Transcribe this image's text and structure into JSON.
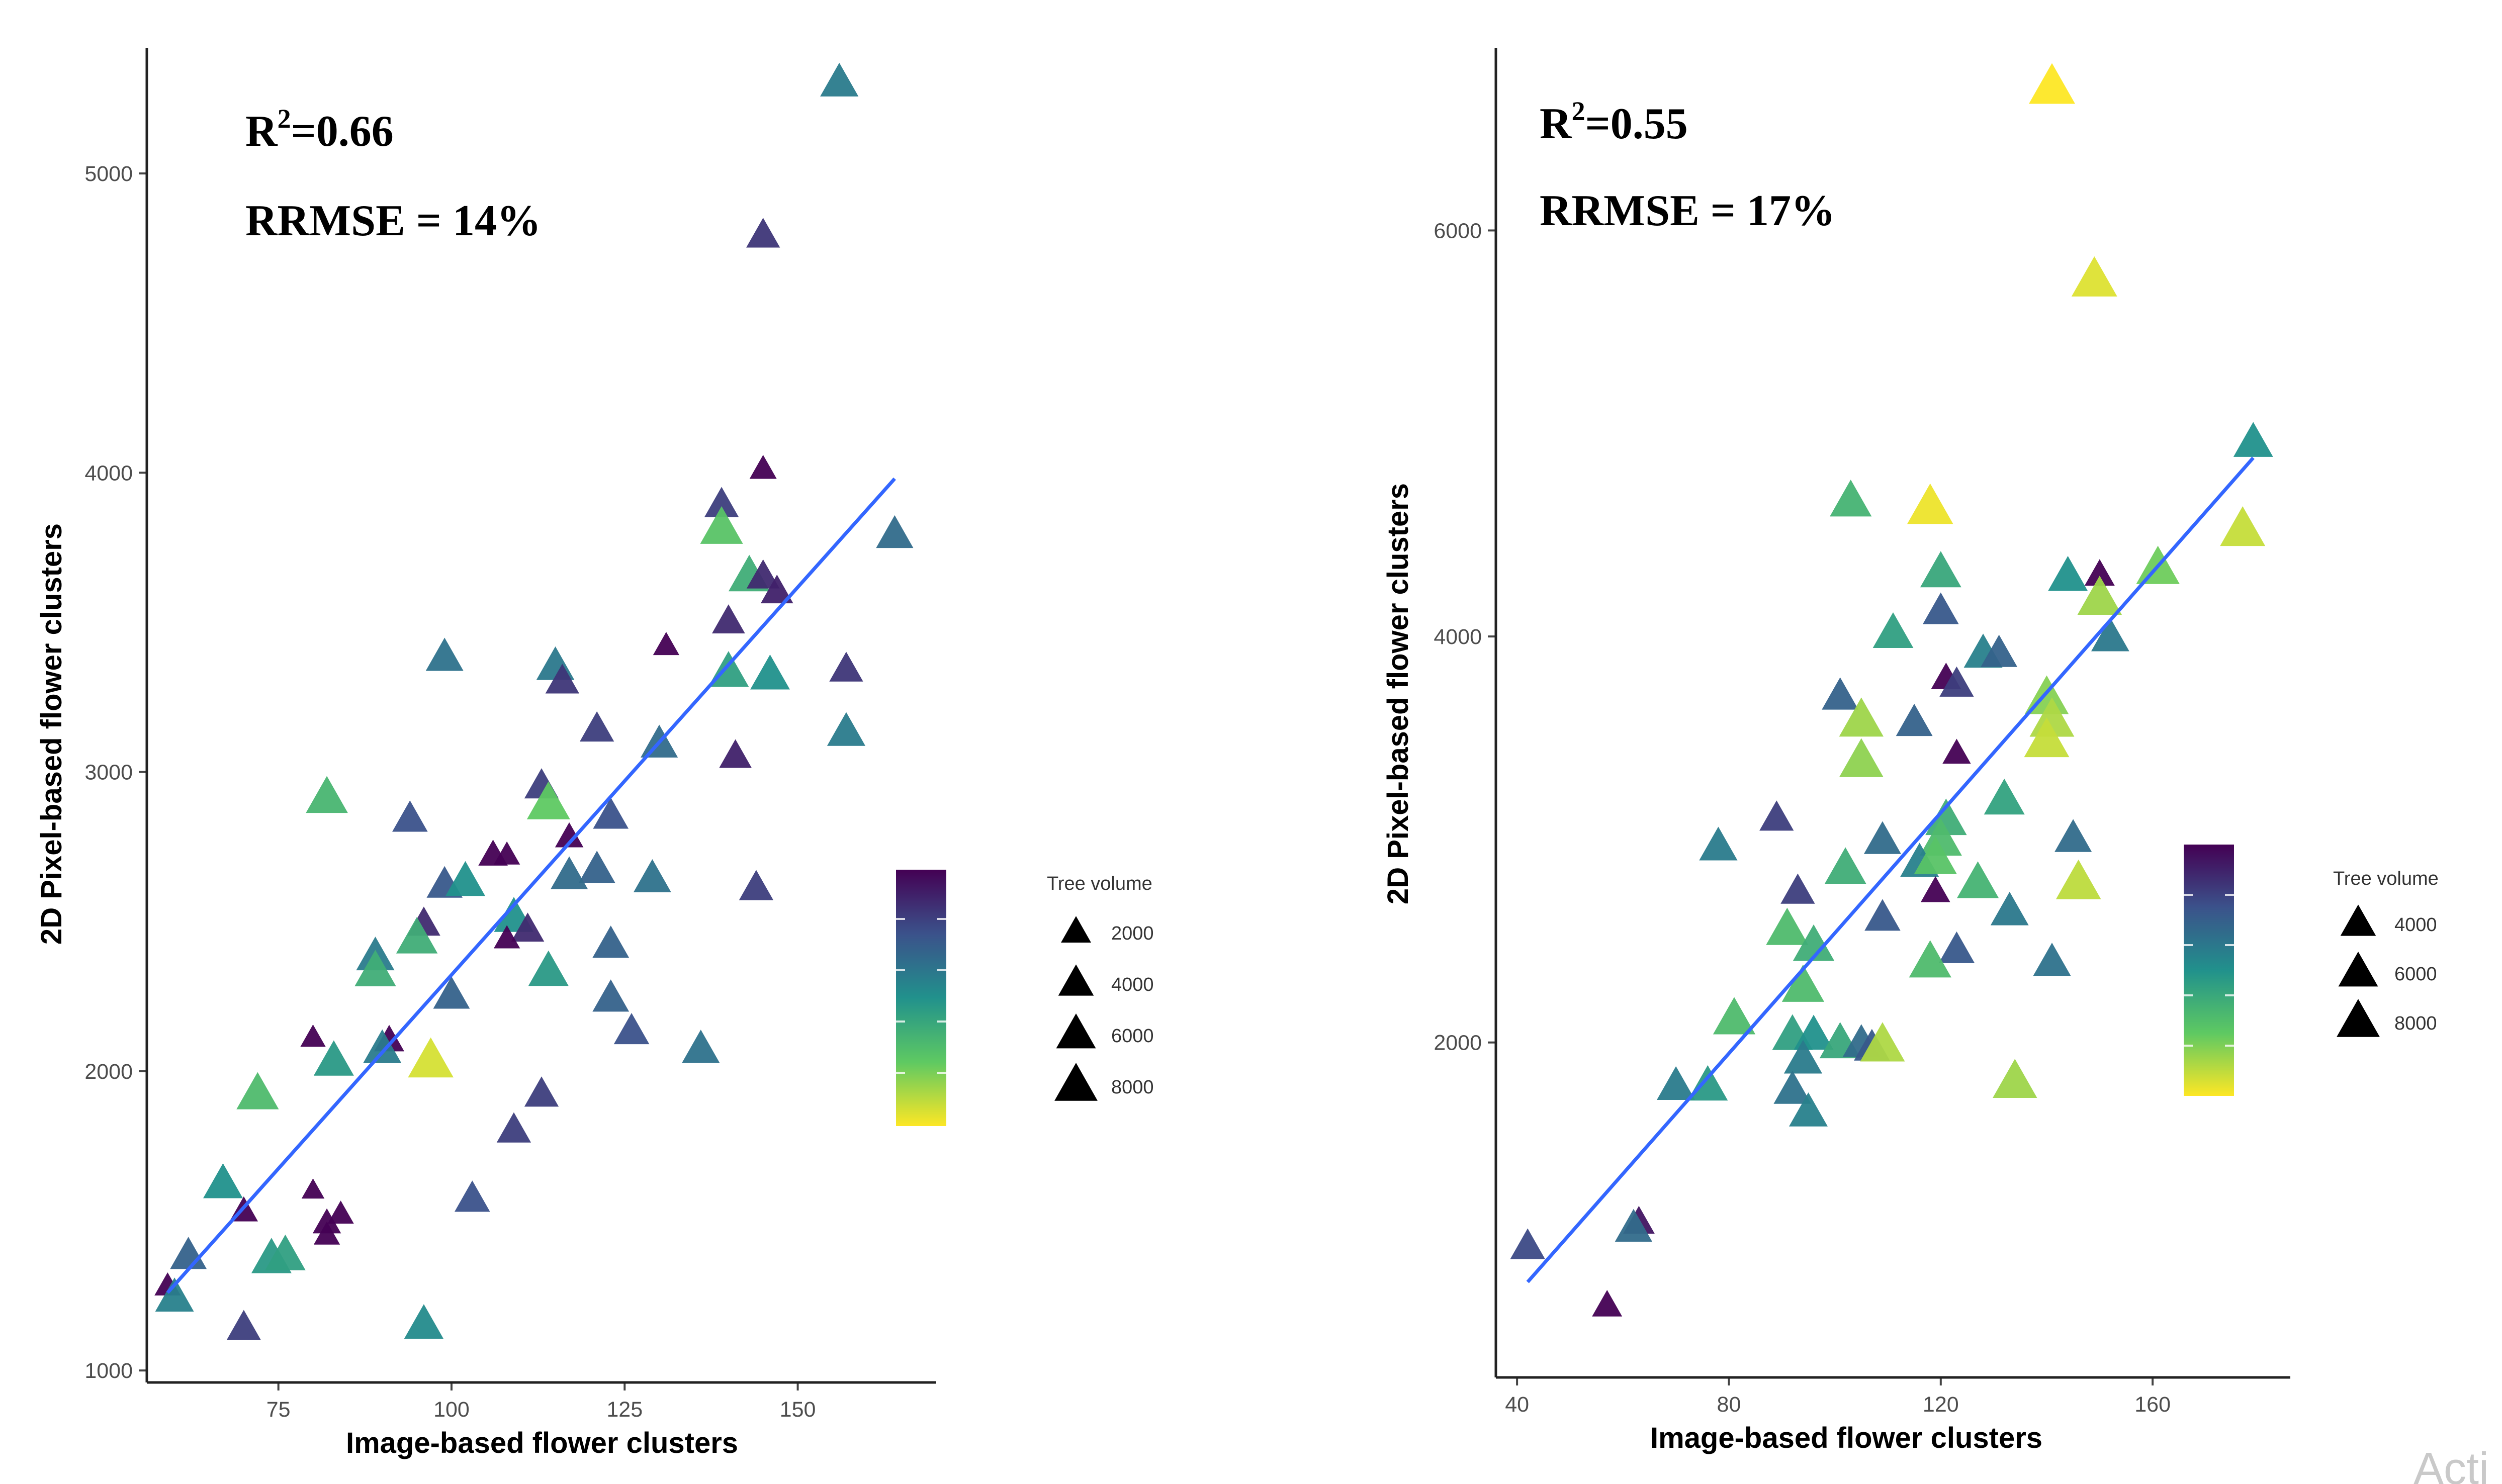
{
  "watermark": "Acti",
  "legend": {
    "title": "Tree volume"
  },
  "chart_data": [
    {
      "type": "scatter",
      "xlabel": "Image-based flower clusters",
      "ylabel": "2D Pixel-based flower clusters",
      "xlim": [
        56,
        170
      ],
      "ylim": [
        960,
        5420
      ],
      "xticks": [
        75,
        100,
        125,
        150
      ],
      "yticks": [
        1000,
        2000,
        3000,
        4000,
        5000
      ],
      "stats": {
        "r2_prefix": "R",
        "r2_sup": "2",
        "r2_value": "=0.66",
        "rrmse": "RRMSE = 14%"
      },
      "fit_line": {
        "x": [
          59,
          164
        ],
        "y": [
          1260,
          3980
        ]
      },
      "color_scale": {
        "min": 2000,
        "max": 10000
      },
      "size_legend": [
        2000,
        4000,
        6000,
        8000
      ],
      "points": [
        {
          "x": 156,
          "y": 5300,
          "v": 5300
        },
        {
          "x": 145,
          "y": 4790,
          "v": 3300
        },
        {
          "x": 145,
          "y": 4010,
          "v": 1200
        },
        {
          "x": 139,
          "y": 3890,
          "v": 3500
        },
        {
          "x": 139,
          "y": 3810,
          "v": 7800
        },
        {
          "x": 143,
          "y": 3650,
          "v": 7000
        },
        {
          "x": 145,
          "y": 3650,
          "v": 3000
        },
        {
          "x": 147,
          "y": 3600,
          "v": 2800
        },
        {
          "x": 164,
          "y": 3790,
          "v": 4800
        },
        {
          "x": 140,
          "y": 3500,
          "v": 3000
        },
        {
          "x": 131,
          "y": 3420,
          "v": 1000
        },
        {
          "x": 99,
          "y": 3380,
          "v": 5000
        },
        {
          "x": 115,
          "y": 3350,
          "v": 5200
        },
        {
          "x": 116,
          "y": 3300,
          "v": 3300
        },
        {
          "x": 140,
          "y": 3330,
          "v": 6500
        },
        {
          "x": 146,
          "y": 3320,
          "v": 6000
        },
        {
          "x": 157,
          "y": 3340,
          "v": 3300
        },
        {
          "x": 157,
          "y": 3130,
          "v": 5300
        },
        {
          "x": 121,
          "y": 3140,
          "v": 3500
        },
        {
          "x": 130,
          "y": 3090,
          "v": 4800
        },
        {
          "x": 141,
          "y": 3050,
          "v": 2800
        },
        {
          "x": 113,
          "y": 2950,
          "v": 3500
        },
        {
          "x": 114,
          "y": 2890,
          "v": 8000
        },
        {
          "x": 82,
          "y": 2910,
          "v": 7300
        },
        {
          "x": 94,
          "y": 2840,
          "v": 4000
        },
        {
          "x": 123,
          "y": 2850,
          "v": 4000
        },
        {
          "x": 117,
          "y": 2780,
          "v": 1500
        },
        {
          "x": 106,
          "y": 2720,
          "v": 1800
        },
        {
          "x": 108,
          "y": 2720,
          "v": 1000
        },
        {
          "x": 121,
          "y": 2670,
          "v": 4500
        },
        {
          "x": 117,
          "y": 2650,
          "v": 4800
        },
        {
          "x": 99,
          "y": 2620,
          "v": 4200
        },
        {
          "x": 102,
          "y": 2630,
          "v": 6000
        },
        {
          "x": 129,
          "y": 2640,
          "v": 5000
        },
        {
          "x": 144,
          "y": 2610,
          "v": 3500
        },
        {
          "x": 109,
          "y": 2510,
          "v": 6000
        },
        {
          "x": 111,
          "y": 2470,
          "v": 3000
        },
        {
          "x": 108,
          "y": 2440,
          "v": 1000
        },
        {
          "x": 96,
          "y": 2490,
          "v": 3000
        },
        {
          "x": 95,
          "y": 2440,
          "v": 7000
        },
        {
          "x": 123,
          "y": 2420,
          "v": 4500
        },
        {
          "x": 89,
          "y": 2380,
          "v": 5300
        },
        {
          "x": 89,
          "y": 2330,
          "v": 7000
        },
        {
          "x": 114,
          "y": 2330,
          "v": 6300
        },
        {
          "x": 100,
          "y": 2250,
          "v": 4500
        },
        {
          "x": 123,
          "y": 2240,
          "v": 4500
        },
        {
          "x": 126,
          "y": 2130,
          "v": 4000
        },
        {
          "x": 80,
          "y": 2110,
          "v": 800
        },
        {
          "x": 91,
          "y": 2100,
          "v": 2000
        },
        {
          "x": 90,
          "y": 2070,
          "v": 5300
        },
        {
          "x": 136,
          "y": 2070,
          "v": 5000
        },
        {
          "x": 83,
          "y": 2030,
          "v": 6300
        },
        {
          "x": 97,
          "y": 2030,
          "v": 9500
        },
        {
          "x": 72,
          "y": 1920,
          "v": 7500
        },
        {
          "x": 113,
          "y": 1920,
          "v": 3500
        },
        {
          "x": 109,
          "y": 1800,
          "v": 3500
        },
        {
          "x": 67,
          "y": 1620,
          "v": 6000
        },
        {
          "x": 103,
          "y": 1570,
          "v": 4000
        },
        {
          "x": 80,
          "y": 1600,
          "v": 400
        },
        {
          "x": 70,
          "y": 1530,
          "v": 1500
        },
        {
          "x": 84,
          "y": 1520,
          "v": 1000
        },
        {
          "x": 82,
          "y": 1490,
          "v": 1500
        },
        {
          "x": 82,
          "y": 1450,
          "v": 1000
        },
        {
          "x": 62,
          "y": 1380,
          "v": 4500
        },
        {
          "x": 74,
          "y": 1370,
          "v": 6300
        },
        {
          "x": 76,
          "y": 1380,
          "v": 6500
        },
        {
          "x": 59,
          "y": 1280,
          "v": 1000
        },
        {
          "x": 60,
          "y": 1240,
          "v": 5500
        },
        {
          "x": 70,
          "y": 1140,
          "v": 3500
        },
        {
          "x": 96,
          "y": 1150,
          "v": 5800
        }
      ]
    },
    {
      "type": "scatter",
      "xlabel": "Image-based flower clusters",
      "ylabel": "2D Pixel-based flower clusters",
      "xlim": [
        36,
        186
      ],
      "ylim": [
        350,
        6900
      ],
      "xticks": [
        40,
        80,
        120,
        160
      ],
      "yticks": [
        2000,
        4000,
        6000
      ],
      "stats": {
        "r2_prefix": "R",
        "r2_sup": "2",
        "r2_value": "=0.55",
        "rrmse": "RRMSE = 17%"
      },
      "fit_line": {
        "x": [
          42,
          179
        ],
        "y": [
          820,
          4880
        ]
      },
      "color_scale": {
        "min": 2000,
        "max": 10000
      },
      "size_legend": [
        4000,
        6000,
        8000
      ],
      "points": [
        {
          "x": 141,
          "y": 6700,
          "v": 10000
        },
        {
          "x": 149,
          "y": 5750,
          "v": 9600
        },
        {
          "x": 179,
          "y": 4950,
          "v": 6000
        },
        {
          "x": 177,
          "y": 4520,
          "v": 9300
        },
        {
          "x": 103,
          "y": 4660,
          "v": 7200
        },
        {
          "x": 118,
          "y": 4630,
          "v": 9800
        },
        {
          "x": 120,
          "y": 4310,
          "v": 6800
        },
        {
          "x": 144,
          "y": 4290,
          "v": 6000
        },
        {
          "x": 150,
          "y": 4300,
          "v": 2000
        },
        {
          "x": 161,
          "y": 4330,
          "v": 8200
        },
        {
          "x": 150,
          "y": 4180,
          "v": 8800
        },
        {
          "x": 120,
          "y": 4120,
          "v": 4200
        },
        {
          "x": 111,
          "y": 4010,
          "v": 6500
        },
        {
          "x": 152,
          "y": 3990,
          "v": 5200
        },
        {
          "x": 128,
          "y": 3910,
          "v": 5500
        },
        {
          "x": 131,
          "y": 3910,
          "v": 4500
        },
        {
          "x": 121,
          "y": 3790,
          "v": 2000
        },
        {
          "x": 123,
          "y": 3760,
          "v": 3500
        },
        {
          "x": 101,
          "y": 3700,
          "v": 4500
        },
        {
          "x": 140,
          "y": 3690,
          "v": 8500
        },
        {
          "x": 105,
          "y": 3580,
          "v": 8800
        },
        {
          "x": 115,
          "y": 3570,
          "v": 4500
        },
        {
          "x": 141,
          "y": 3580,
          "v": 9000
        },
        {
          "x": 140,
          "y": 3480,
          "v": 9300
        },
        {
          "x": 123,
          "y": 3420,
          "v": 1500
        },
        {
          "x": 105,
          "y": 3380,
          "v": 8600
        },
        {
          "x": 132,
          "y": 3190,
          "v": 6600
        },
        {
          "x": 89,
          "y": 3100,
          "v": 3500
        },
        {
          "x": 121,
          "y": 3090,
          "v": 7000
        },
        {
          "x": 78,
          "y": 2960,
          "v": 5300
        },
        {
          "x": 109,
          "y": 2990,
          "v": 4800
        },
        {
          "x": 120,
          "y": 2990,
          "v": 7500
        },
        {
          "x": 145,
          "y": 3000,
          "v": 4800
        },
        {
          "x": 116,
          "y": 2880,
          "v": 5500
        },
        {
          "x": 119,
          "y": 2900,
          "v": 7800
        },
        {
          "x": 102,
          "y": 2850,
          "v": 7000
        },
        {
          "x": 127,
          "y": 2780,
          "v": 7200
        },
        {
          "x": 119,
          "y": 2740,
          "v": 1800
        },
        {
          "x": 146,
          "y": 2780,
          "v": 9200
        },
        {
          "x": 93,
          "y": 2740,
          "v": 3500
        },
        {
          "x": 133,
          "y": 2640,
          "v": 5200
        },
        {
          "x": 109,
          "y": 2610,
          "v": 4200
        },
        {
          "x": 91,
          "y": 2550,
          "v": 7500
        },
        {
          "x": 96,
          "y": 2470,
          "v": 7000
        },
        {
          "x": 123,
          "y": 2450,
          "v": 4200
        },
        {
          "x": 118,
          "y": 2390,
          "v": 7500
        },
        {
          "x": 141,
          "y": 2390,
          "v": 5000
        },
        {
          "x": 94,
          "y": 2270,
          "v": 7500
        },
        {
          "x": 81,
          "y": 2110,
          "v": 7500
        },
        {
          "x": 92,
          "y": 2030,
          "v": 6500
        },
        {
          "x": 96,
          "y": 2030,
          "v": 6000
        },
        {
          "x": 101,
          "y": 1990,
          "v": 6800
        },
        {
          "x": 105,
          "y": 1990,
          "v": 4800
        },
        {
          "x": 107,
          "y": 1970,
          "v": 4200
        },
        {
          "x": 109,
          "y": 1980,
          "v": 9000
        },
        {
          "x": 94,
          "y": 1910,
          "v": 5300
        },
        {
          "x": 70,
          "y": 1780,
          "v": 5300
        },
        {
          "x": 76,
          "y": 1780,
          "v": 6300
        },
        {
          "x": 92,
          "y": 1760,
          "v": 5000
        },
        {
          "x": 134,
          "y": 1800,
          "v": 8800
        },
        {
          "x": 95,
          "y": 1650,
          "v": 5500
        },
        {
          "x": 63,
          "y": 1110,
          "v": 2500
        },
        {
          "x": 62,
          "y": 1080,
          "v": 4800
        },
        {
          "x": 42,
          "y": 990,
          "v": 3800
        },
        {
          "x": 57,
          "y": 700,
          "v": 2000
        }
      ]
    }
  ]
}
